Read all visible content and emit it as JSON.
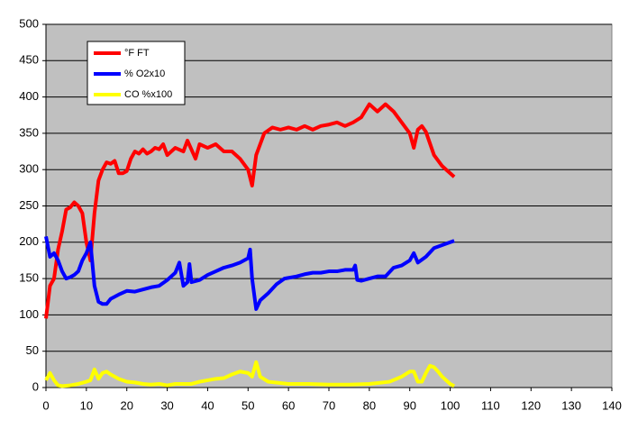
{
  "chart_data": {
    "type": "line",
    "xlim": [
      0,
      140
    ],
    "xticks": [
      0,
      10,
      20,
      30,
      40,
      50,
      60,
      70,
      80,
      90,
      100,
      110,
      120,
      130,
      140
    ],
    "ylim": [
      0,
      500
    ],
    "yticks": [
      0,
      50,
      100,
      150,
      200,
      250,
      300,
      350,
      400,
      450,
      500
    ],
    "grid": true,
    "legend": "upper-left",
    "series": [
      {
        "name": "°F FT",
        "color": "#ff0000",
        "x": [
          0,
          1,
          2,
          3,
          4,
          5,
          6,
          7,
          8,
          9,
          10,
          11,
          12,
          13,
          14,
          15,
          16,
          17,
          18,
          19,
          20,
          21,
          22,
          23,
          24,
          25,
          26,
          27,
          28,
          29,
          30,
          32,
          34,
          35,
          37,
          38,
          40,
          42,
          44,
          46,
          48,
          50,
          51,
          52,
          54,
          56,
          58,
          60,
          62,
          64,
          66,
          68,
          70,
          72,
          74,
          76,
          78,
          80,
          82,
          84,
          86,
          88,
          90,
          91,
          92,
          93,
          94,
          96,
          98,
          99,
          100,
          101
        ],
        "values": [
          95,
          140,
          150,
          190,
          215,
          245,
          248,
          255,
          250,
          240,
          200,
          175,
          240,
          285,
          300,
          310,
          308,
          312,
          295,
          295,
          298,
          315,
          325,
          322,
          328,
          322,
          325,
          330,
          328,
          335,
          320,
          330,
          325,
          340,
          315,
          335,
          330,
          335,
          325,
          325,
          315,
          300,
          278,
          320,
          350,
          358,
          355,
          358,
          355,
          360,
          355,
          360,
          362,
          365,
          360,
          365,
          372,
          390,
          380,
          390,
          380,
          365,
          350,
          330,
          355,
          360,
          352,
          320,
          305,
          300,
          295,
          290
        ]
      },
      {
        "name": "% O2x10",
        "color": "#0000ff",
        "x": [
          0,
          1,
          2,
          3,
          4,
          5,
          6,
          7,
          8,
          9,
          10,
          11,
          12,
          13,
          14,
          15,
          16,
          18,
          20,
          22,
          24,
          26,
          28,
          30,
          32,
          33,
          34,
          35,
          35.5,
          36,
          38,
          40,
          42,
          44,
          46,
          48,
          50,
          50.5,
          51,
          52,
          53,
          55,
          57,
          59,
          62,
          64,
          66,
          68,
          70,
          72,
          74,
          76,
          76.5,
          77,
          78,
          80,
          82,
          84,
          86,
          88,
          90,
          91,
          92,
          94,
          96,
          98,
          100,
          101
        ],
        "values": [
          208,
          180,
          185,
          175,
          160,
          150,
          152,
          155,
          160,
          175,
          185,
          200,
          140,
          118,
          115,
          115,
          122,
          128,
          133,
          132,
          135,
          138,
          140,
          148,
          158,
          172,
          140,
          145,
          170,
          145,
          148,
          155,
          160,
          165,
          168,
          172,
          178,
          190,
          150,
          108,
          120,
          130,
          142,
          150,
          153,
          156,
          158,
          158,
          160,
          160,
          162,
          162,
          168,
          148,
          147,
          150,
          153,
          153,
          165,
          168,
          175,
          185,
          172,
          180,
          192,
          196,
          200,
          202
        ]
      },
      {
        "name": "CO %x100",
        "color": "#ffff00",
        "x": [
          0,
          1,
          2,
          3,
          4,
          6,
          8,
          10,
          11,
          12,
          13,
          14,
          15,
          16,
          18,
          20,
          22,
          24,
          26,
          28,
          30,
          32,
          34,
          36,
          38,
          40,
          42,
          44,
          46,
          48,
          50,
          51,
          52,
          53,
          55,
          60,
          65,
          70,
          75,
          80,
          85,
          88,
          90,
          91,
          92,
          93,
          94,
          95,
          96,
          97,
          98,
          100,
          101
        ],
        "values": [
          10,
          20,
          10,
          3,
          2,
          3,
          5,
          8,
          10,
          25,
          12,
          20,
          22,
          18,
          12,
          8,
          7,
          5,
          4,
          5,
          3,
          5,
          5,
          5,
          8,
          10,
          12,
          13,
          18,
          22,
          20,
          15,
          35,
          15,
          8,
          5,
          5,
          4,
          4,
          5,
          8,
          15,
          22,
          22,
          8,
          8,
          20,
          30,
          28,
          22,
          15,
          5,
          2
        ]
      }
    ]
  }
}
